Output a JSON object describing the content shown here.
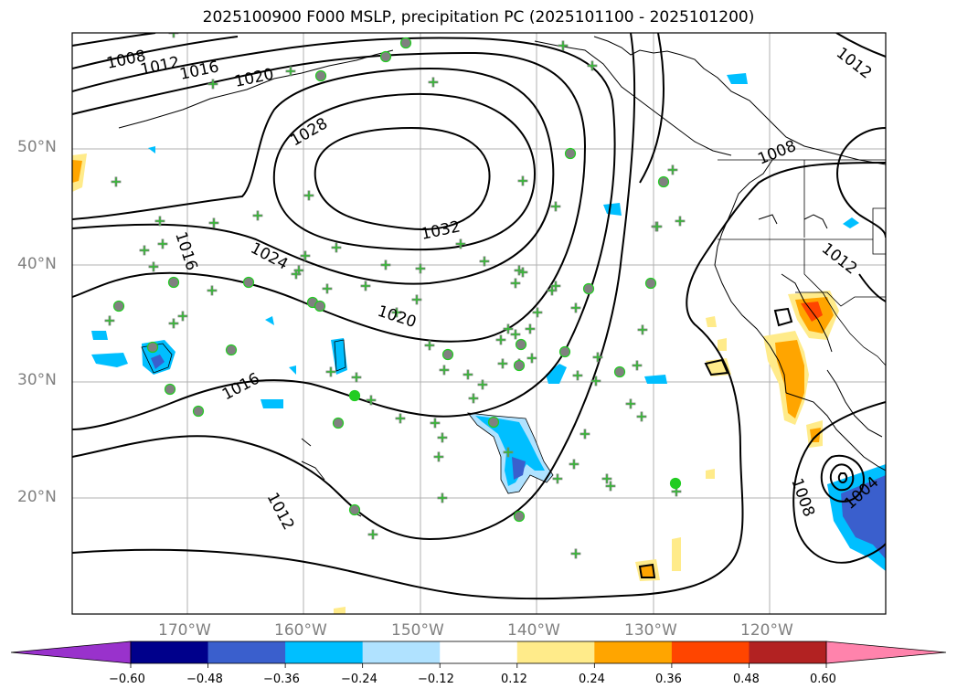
{
  "title": "2025100900 F000 MSLP, precipitation PC (2025101100 - 2025101200)",
  "lat_labels": [
    "50°N",
    "40°N",
    "30°N",
    "20°N"
  ],
  "lon_labels": [
    "170°W",
    "160°W",
    "150°W",
    "140°W",
    "130°W",
    "120°W"
  ],
  "isobar_labels": [
    "1008",
    "1012",
    "1016",
    "1020",
    "1028",
    "1032",
    "1024",
    "1016",
    "1020",
    "1016",
    "1012",
    "1012",
    "1008",
    "1012",
    "1008",
    "1004"
  ],
  "colorbar": {
    "ticks": [
      "−0.60",
      "−0.48",
      "−0.36",
      "−0.24",
      "−0.12",
      "0.12",
      "0.24",
      "0.36",
      "0.48",
      "0.60"
    ],
    "colors": [
      "#9932cc",
      "#00008b",
      "#3a5fcd",
      "#00bfff",
      "#b0e2ff",
      "#ffffff",
      "#ffeb8a",
      "#ffa500",
      "#ff4500",
      "#b22222",
      "#ff83ac"
    ]
  },
  "colors": {
    "frame": "#000000",
    "grid": "#b0b0b0",
    "station_green": "#22cc22",
    "station_gray": "#808080"
  }
}
